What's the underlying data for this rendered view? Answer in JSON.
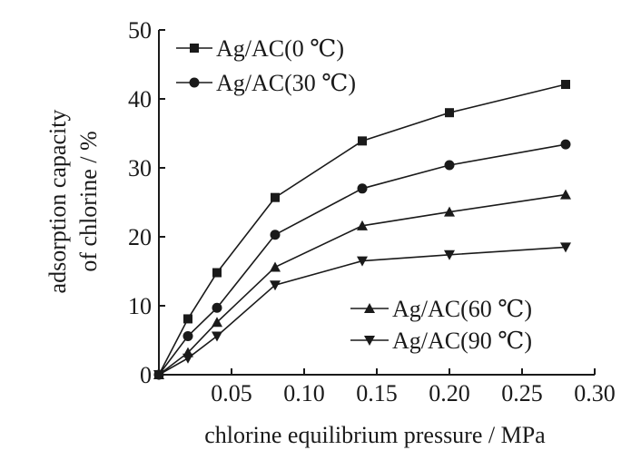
{
  "chart_data": {
    "type": "line",
    "xlabel": "chlorine equilibrium pressure / MPa",
    "ylabel_lines": [
      "adsorption capacity",
      "of chlorine / %"
    ],
    "xlim": [
      0,
      0.3
    ],
    "ylim": [
      0,
      50
    ],
    "x_ticks": [
      0.05,
      0.1,
      0.15,
      0.2,
      0.25,
      0.3
    ],
    "x_tick_labels": [
      "0.05",
      "0.10",
      "0.15",
      "0.20",
      "0.25",
      "0.30"
    ],
    "y_ticks": [
      0,
      10,
      20,
      30,
      40,
      50
    ],
    "y_tick_labels": [
      "0",
      "10",
      "20",
      "30",
      "40",
      "50"
    ],
    "grid": false,
    "legend_top_placement": "top-left",
    "legend_bottom_placement": "bottom-right",
    "series": [
      {
        "name": "Ag/AC(0 ℃)",
        "marker": "square",
        "x": [
          0,
          0.02,
          0.04,
          0.08,
          0.14,
          0.2,
          0.28
        ],
        "values": [
          0,
          8.1,
          14.8,
          25.7,
          33.9,
          38.0,
          42.1
        ]
      },
      {
        "name": "Ag/AC(30 ℃)",
        "marker": "circle",
        "x": [
          0,
          0.02,
          0.04,
          0.08,
          0.14,
          0.2,
          0.28
        ],
        "values": [
          0,
          5.6,
          9.7,
          20.3,
          27.0,
          30.4,
          33.4
        ]
      },
      {
        "name": "Ag/AC(60 ℃)",
        "marker": "triangle-up",
        "x": [
          0,
          0.02,
          0.04,
          0.08,
          0.14,
          0.2,
          0.28
        ],
        "values": [
          0,
          3.2,
          7.6,
          15.6,
          21.6,
          23.6,
          26.1
        ]
      },
      {
        "name": "Ag/AC(90 ℃)",
        "marker": "triangle-down",
        "x": [
          0,
          0.02,
          0.04,
          0.08,
          0.14,
          0.2,
          0.28
        ],
        "values": [
          0,
          2.4,
          5.6,
          13.0,
          16.5,
          17.4,
          18.5
        ]
      }
    ]
  }
}
